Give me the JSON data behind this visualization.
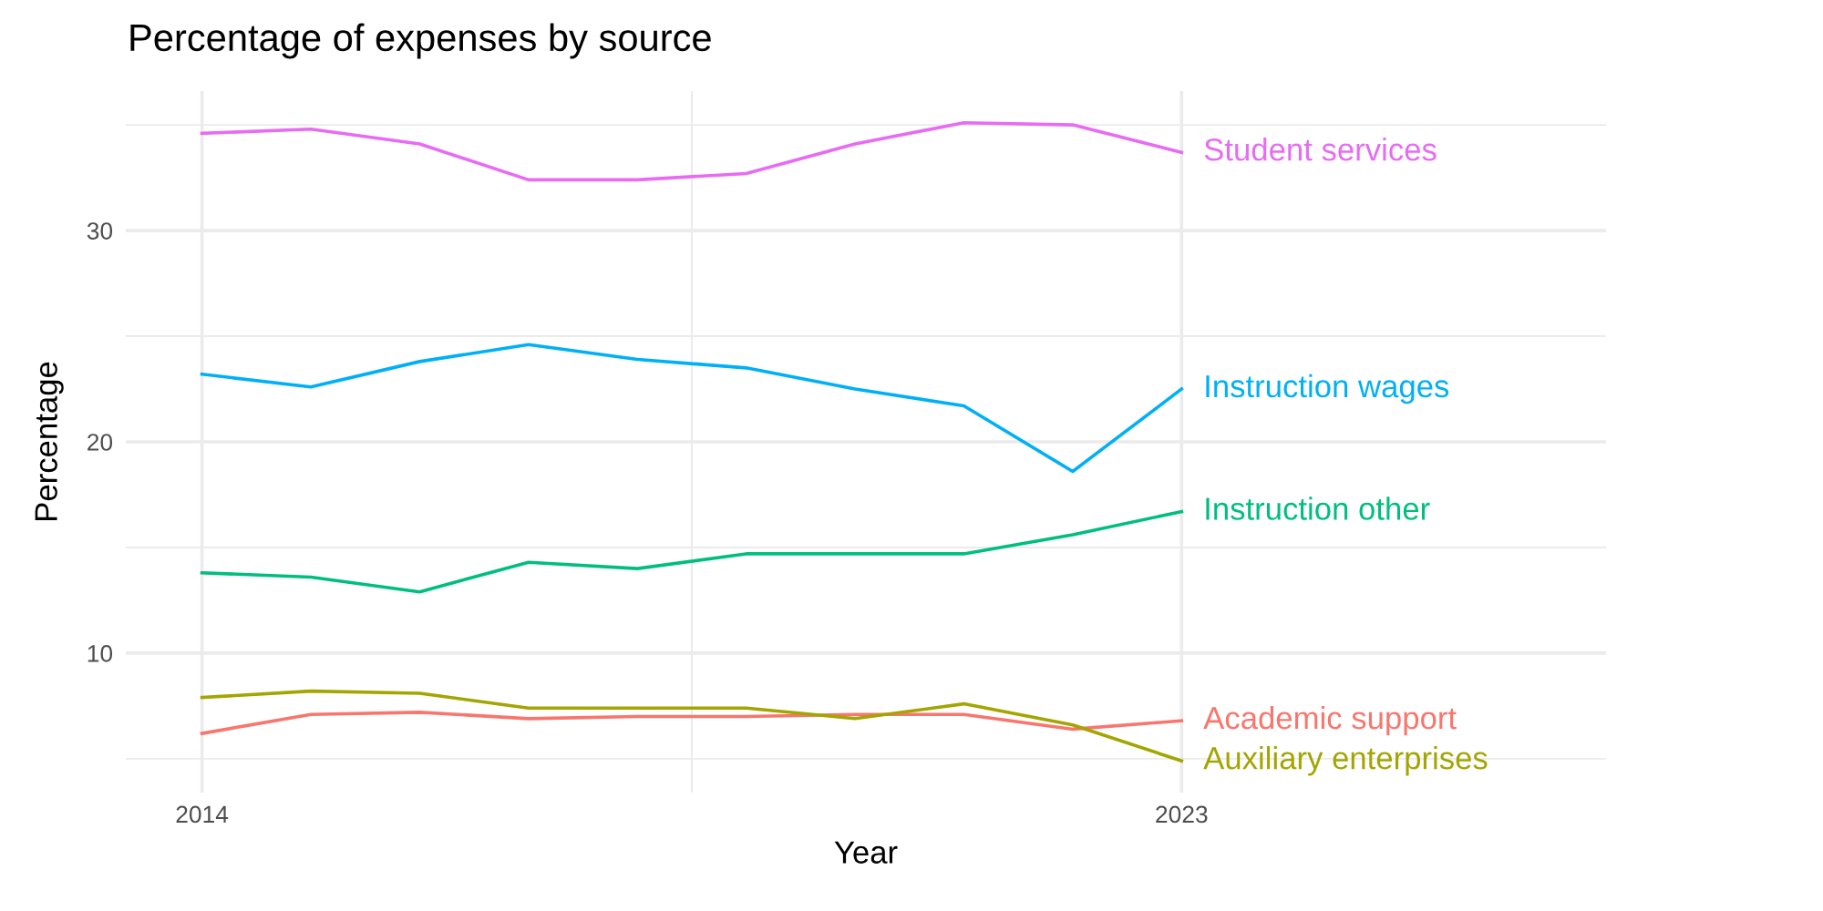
{
  "chart_data": {
    "type": "line",
    "title": "Percentage of expenses by source",
    "xlabel": "Year",
    "ylabel": "Percentage",
    "x": [
      2014,
      2015,
      2016,
      2017,
      2018,
      2019,
      2020,
      2021,
      2022,
      2023
    ],
    "series": [
      {
        "name": "Student services",
        "color": "#e76bf3",
        "values": [
          34.6,
          34.8,
          34.1,
          32.4,
          32.4,
          32.7,
          34.1,
          35.1,
          35.0,
          33.7
        ]
      },
      {
        "name": "Instruction wages",
        "color": "#00b0f6",
        "values": [
          23.2,
          22.6,
          23.8,
          24.6,
          23.9,
          23.5,
          22.5,
          21.7,
          18.6,
          22.5
        ]
      },
      {
        "name": "Instruction other",
        "color": "#00bf7d",
        "values": [
          13.8,
          13.6,
          12.9,
          14.3,
          14.0,
          14.7,
          14.7,
          14.7,
          15.6,
          16.7
        ]
      },
      {
        "name": "Academic support",
        "color": "#f8766d",
        "values": [
          6.2,
          7.1,
          7.2,
          6.9,
          7.0,
          7.0,
          7.1,
          7.1,
          6.4,
          6.8
        ]
      },
      {
        "name": "Auxiliary enterprises",
        "color": "#a3a500",
        "values": [
          7.9,
          8.2,
          8.1,
          7.4,
          7.4,
          7.4,
          6.9,
          7.6,
          6.6,
          4.9
        ]
      }
    ],
    "xlim": [
      2013.3,
      2026.9
    ],
    "xticks": [
      2014,
      {
        "value": 2018.5,
        "label": null
      },
      2023
    ],
    "ylim": [
      3.4,
      36.6
    ],
    "yticks": [
      {
        "value": 5,
        "label": null
      },
      10,
      {
        "value": 15,
        "label": null
      },
      20,
      {
        "value": 25,
        "label": null
      },
      30,
      {
        "value": 35,
        "label": null
      }
    ],
    "grid": true,
    "legend": "right",
    "marker": "none",
    "line_style": "solid"
  }
}
